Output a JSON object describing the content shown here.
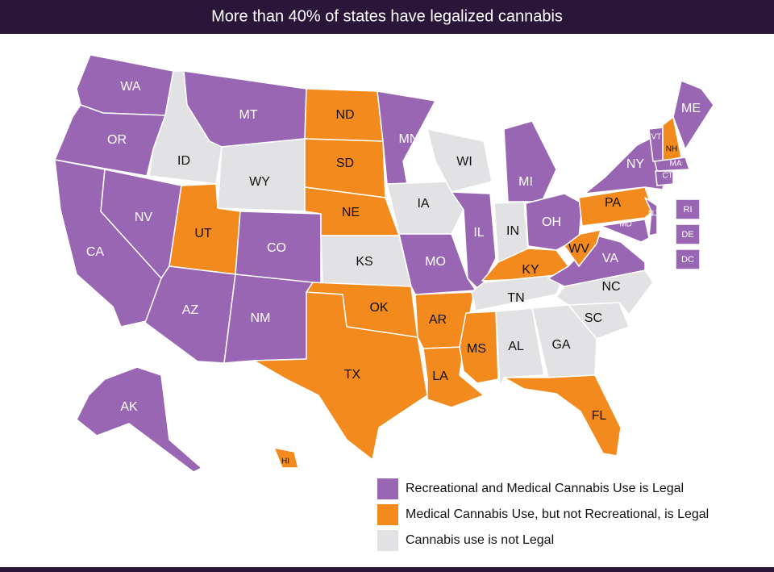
{
  "title": "More than 40% of states have legalized cannabis",
  "legend": [
    {
      "label": "Recreational and Medical Cannabis Use is Legal",
      "color": "#9966b3"
    },
    {
      "label": "Medical Cannabis Use, but not Recreational, is Legal",
      "color": "#f28a1e"
    },
    {
      "label": "Cannabis use is not Legal",
      "color": "#e2e2e4"
    }
  ],
  "states": [
    {
      "label": "WA",
      "legend": 0
    },
    {
      "label": "OR",
      "legend": 0
    },
    {
      "label": "CA",
      "legend": 0
    },
    {
      "label": "NV",
      "legend": 0
    },
    {
      "label": "ID",
      "legend": 2
    },
    {
      "label": "MT",
      "legend": 0
    },
    {
      "label": "WY",
      "legend": 2
    },
    {
      "label": "UT",
      "legend": 1
    },
    {
      "label": "AZ",
      "legend": 0
    },
    {
      "label": "CO",
      "legend": 0
    },
    {
      "label": "NM",
      "legend": 0
    },
    {
      "label": "ND",
      "legend": 1
    },
    {
      "label": "SD",
      "legend": 1
    },
    {
      "label": "NE",
      "legend": 1
    },
    {
      "label": "KS",
      "legend": 2
    },
    {
      "label": "OK",
      "legend": 1
    },
    {
      "label": "TX",
      "legend": 1
    },
    {
      "label": "MN",
      "legend": 0
    },
    {
      "label": "IA",
      "legend": 2
    },
    {
      "label": "MO",
      "legend": 0
    },
    {
      "label": "AR",
      "legend": 1
    },
    {
      "label": "LA",
      "legend": 1
    },
    {
      "label": "WI",
      "legend": 2
    },
    {
      "label": "IL",
      "legend": 0
    },
    {
      "label": "MI",
      "legend": 0
    },
    {
      "label": "IN",
      "legend": 2
    },
    {
      "label": "OH",
      "legend": 0
    },
    {
      "label": "KY",
      "legend": 1
    },
    {
      "label": "TN",
      "legend": 2
    },
    {
      "label": "MS",
      "legend": 1
    },
    {
      "label": "AL",
      "legend": 2
    },
    {
      "label": "GA",
      "legend": 2
    },
    {
      "label": "FL",
      "legend": 1
    },
    {
      "label": "SC",
      "legend": 2
    },
    {
      "label": "NC",
      "legend": 2
    },
    {
      "label": "VA",
      "legend": 0
    },
    {
      "label": "WV",
      "legend": 1
    },
    {
      "label": "PA",
      "legend": 1
    },
    {
      "label": "MD",
      "legend": 0
    },
    {
      "label": "NJ",
      "legend": 0
    },
    {
      "label": "NY",
      "legend": 0
    },
    {
      "label": "VT",
      "legend": 0
    },
    {
      "label": "NH",
      "legend": 1
    },
    {
      "label": "ME",
      "legend": 0
    },
    {
      "label": "MA",
      "legend": 0
    },
    {
      "label": "CT",
      "legend": 0
    },
    {
      "label": "RI",
      "legend": 0
    },
    {
      "label": "DE",
      "legend": 0
    },
    {
      "label": "DC",
      "legend": 0
    },
    {
      "label": "AK",
      "legend": 0
    },
    {
      "label": "HI",
      "legend": 1
    }
  ]
}
